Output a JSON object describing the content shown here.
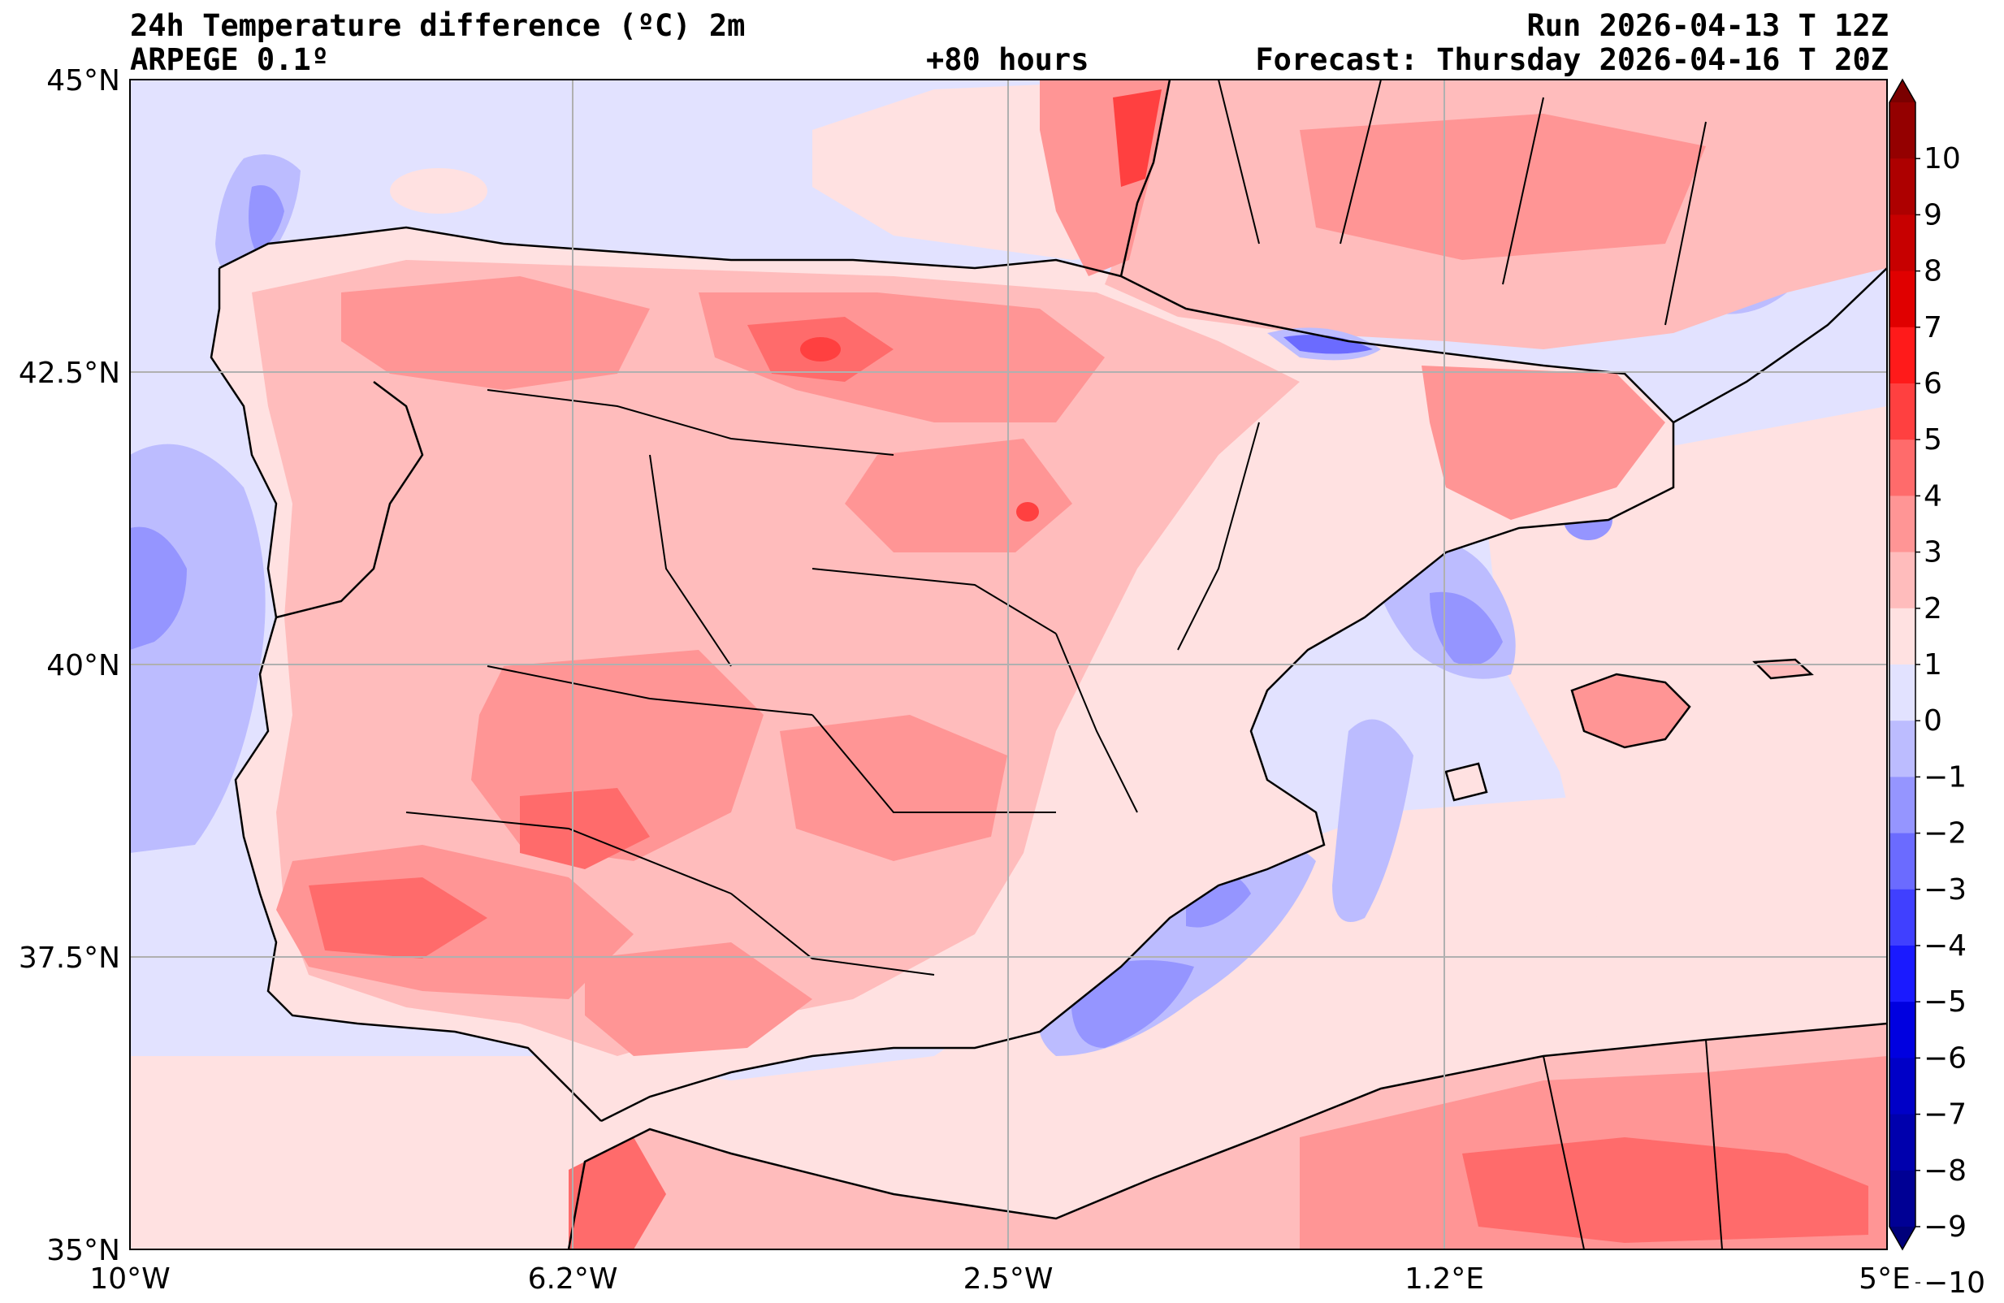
{
  "header": {
    "title": "24h Temperature difference (ºC) 2m",
    "model": "ARPEGE 0.1º",
    "lead_time": "+80 hours",
    "run": "Run 2026-04-13 T 12Z",
    "forecast": "Forecast: Thursday 2026-04-16 T 20Z"
  },
  "axes": {
    "lat_labels": [
      "45°N",
      "42.5°N",
      "40°N",
      "37.5°N",
      "35°N"
    ],
    "lon_labels": [
      "10°W",
      "6.2°W",
      "2.5°W",
      "1.2°E",
      "5°E"
    ]
  },
  "colorbar": {
    "labels": [
      "10",
      "9",
      "8",
      "7",
      "6",
      "5",
      "4",
      "3",
      "2",
      "1",
      "0",
      "−1",
      "−2",
      "−3",
      "−4",
      "−5",
      "−6",
      "−7",
      "−8",
      "−9",
      "−10"
    ],
    "colors": [
      "#7a0000",
      "#940000",
      "#ad0000",
      "#c70000",
      "#e00000",
      "#ff1a1a",
      "#ff4040",
      "#ff6b6b",
      "#ff9595",
      "#ffbcbc",
      "#ffe1e1",
      "#e2e2ff",
      "#bcbcff",
      "#9595ff",
      "#6b6bff",
      "#4040ff",
      "#1a1aff",
      "#0000e0",
      "#0000c7",
      "#0000ad",
      "#000094",
      "#00007a"
    ]
  },
  "legend_colors": {
    "sea_background": "#e2e2ff",
    "warm_background": "#ffe1e1"
  }
}
